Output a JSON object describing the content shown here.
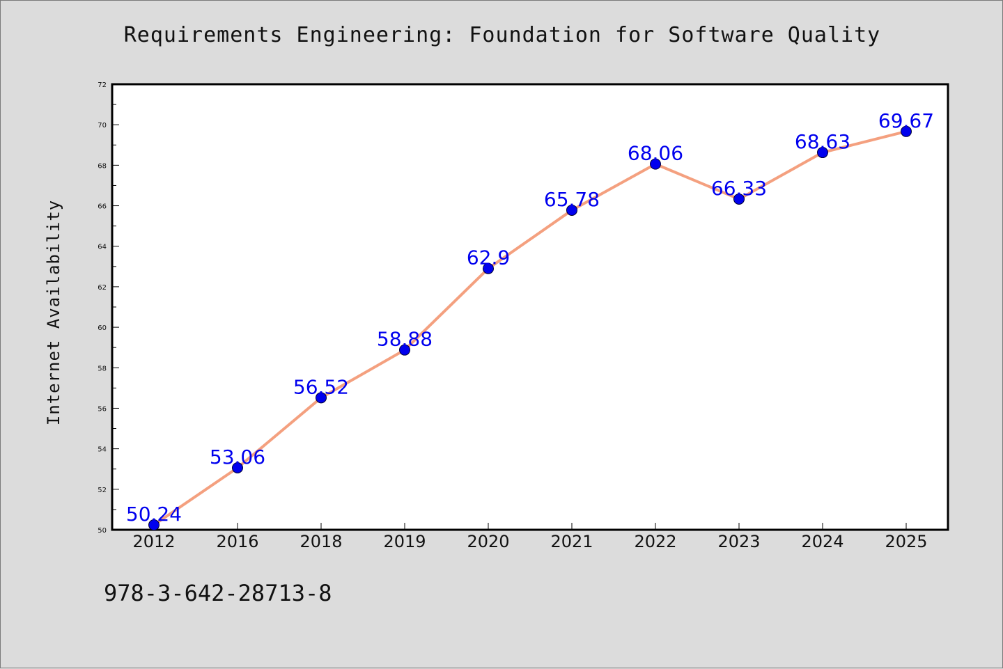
{
  "page": {
    "background_color": "#dcdcdc",
    "footer_code": "978-3-642-28713-8"
  },
  "chart_data": {
    "type": "line",
    "title": "Requirements Engineering: Foundation for Software Quality",
    "xlabel": "",
    "ylabel": "Internet Availability",
    "categories": [
      "2012",
      "2016",
      "2018",
      "2019",
      "2020",
      "2021",
      "2022",
      "2023",
      "2024",
      "2025"
    ],
    "series": [
      {
        "values": [
          50.24,
          53.06,
          56.52,
          58.88,
          62.9,
          65.78,
          68.06,
          66.33,
          68.63,
          69.67
        ],
        "line_color": "#f4a07f",
        "marker_color": "#0000ee",
        "label_color": "#0000ee"
      }
    ],
    "data_labels": [
      "50.24",
      "53.06",
      "56.52",
      "58.88",
      "62.9",
      "65.78",
      "68.06",
      "66.33",
      "68.63",
      "69.67"
    ],
    "ylim": [
      50,
      72
    ],
    "yticks": [
      "50",
      "52",
      "54",
      "56",
      "58",
      "60",
      "62",
      "64",
      "66",
      "68",
      "70",
      "72"
    ],
    "grid": false,
    "legend": "none"
  }
}
